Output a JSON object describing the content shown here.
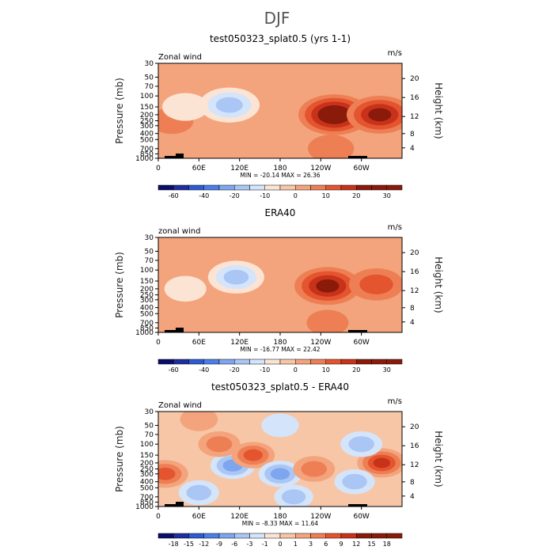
{
  "main_title": "DJF",
  "colors": {
    "neg": [
      "#0a0e6b",
      "#1e2fa0",
      "#2e5bd4",
      "#4a7fe6",
      "#7ea6ef",
      "#a9c6f5",
      "#d4e4fa"
    ],
    "pos": [
      "#fbe4d4",
      "#f7c6a6",
      "#f3a47c",
      "#ee7f55",
      "#e4542e",
      "#c8321a",
      "#8a1a0a"
    ],
    "frame": "#000000"
  },
  "chart_data": [
    {
      "type": "heatmap",
      "title": "test050323_splat0.5 (yrs 1-1)",
      "variable_label": "Zonal wind",
      "units_label": "m/s",
      "ylabel": "Pressure (mb)",
      "y2label": "Height (km)",
      "x_ticks": [
        "0",
        "60E",
        "120E",
        "180",
        "120W",
        "60W"
      ],
      "y_ticks": [
        "30",
        "50",
        "70",
        "100",
        "150",
        "200",
        "250",
        "300",
        "400",
        "500",
        "700",
        "850",
        "1000"
      ],
      "y2_ticks": [
        "20",
        "16",
        "12",
        "8",
        "4"
      ],
      "min_max_text": "MIN = -20.14   MAX = 26.36",
      "colorbar_labels": [
        "-60",
        "-40",
        "-20",
        "-10",
        "0",
        "10",
        "20",
        "30"
      ],
      "colorbar_levels": [
        -70,
        -60,
        -50,
        -40,
        -30,
        -20,
        -15,
        -10,
        -5,
        0,
        5,
        10,
        15,
        20,
        25,
        30
      ],
      "min": -20.14,
      "max": 26.36,
      "features": [
        {
          "lon": 105,
          "p": 140,
          "value": -18
        },
        {
          "lon": 260,
          "p": 200,
          "value": 26
        },
        {
          "lon": 327,
          "p": 200,
          "value": 22
        },
        {
          "lon": 255,
          "p": 700,
          "value": 8
        },
        {
          "lon": 150,
          "p": 850,
          "value": 4
        },
        {
          "lon": 20,
          "p": 250,
          "value": 6
        },
        {
          "lon": 40,
          "p": 150,
          "value": -8
        }
      ]
    },
    {
      "type": "heatmap",
      "title": "ERA40",
      "variable_label": "zonal wind",
      "units_label": "m/s",
      "ylabel": "Pressure (mb)",
      "y2label": "Height (km)",
      "x_ticks": [
        "0",
        "60E",
        "120E",
        "180",
        "120W",
        "60W"
      ],
      "y_ticks": [
        "30",
        "50",
        "70",
        "100",
        "150",
        "200",
        "250",
        "300",
        "400",
        "500",
        "700",
        "850",
        "1000"
      ],
      "y2_ticks": [
        "20",
        "16",
        "12",
        "8",
        "4"
      ],
      "min_max_text": "MIN = -16.77   MAX = 22.42",
      "colorbar_labels": [
        "-60",
        "-40",
        "-20",
        "-10",
        "0",
        "10",
        "20",
        "30"
      ],
      "colorbar_levels": [
        -70,
        -60,
        -50,
        -40,
        -30,
        -20,
        -15,
        -10,
        -5,
        0,
        5,
        10,
        15,
        20,
        25,
        30
      ],
      "min": -16.77,
      "max": 22.42,
      "features": [
        {
          "lon": 115,
          "p": 130,
          "value": -15
        },
        {
          "lon": 250,
          "p": 180,
          "value": 22
        },
        {
          "lon": 322,
          "p": 170,
          "value": 14
        },
        {
          "lon": 40,
          "p": 200,
          "value": -5
        },
        {
          "lon": 250,
          "p": 700,
          "value": 5
        },
        {
          "lon": 300,
          "p": 550,
          "value": -4
        }
      ]
    },
    {
      "type": "heatmap",
      "title": "test050323_splat0.5 - ERA40",
      "variable_label": "Zonal wind",
      "units_label": "m/s",
      "ylabel": "Pressure (mb)",
      "y2label": "Height (km)",
      "x_ticks": [
        "0",
        "60E",
        "120E",
        "180",
        "120W",
        "60W"
      ],
      "y_ticks": [
        "30",
        "50",
        "70",
        "100",
        "150",
        "200",
        "250",
        "300",
        "400",
        "500",
        "700",
        "850",
        "1000"
      ],
      "y2_ticks": [
        "20",
        "16",
        "12",
        "8",
        "4"
      ],
      "min_max_text": "MIN = -8.33   MAX = 11.64",
      "colorbar_labels": [
        "-18",
        "-15",
        "-12",
        "-9",
        "-6",
        "-3",
        "-1",
        "0",
        "1",
        "3",
        "6",
        "9",
        "12",
        "15",
        "18"
      ],
      "colorbar_levels": [
        -21,
        -18,
        -15,
        -12,
        -9,
        -6,
        -3,
        -1,
        0,
        1,
        3,
        6,
        9,
        12,
        15,
        18
      ],
      "min": -8.33,
      "max": 11.64,
      "features": [
        {
          "lon": 10,
          "p": 300,
          "value": 8
        },
        {
          "lon": 110,
          "p": 220,
          "value": -7
        },
        {
          "lon": 90,
          "p": 100,
          "value": 5
        },
        {
          "lon": 140,
          "p": 150,
          "value": 6
        },
        {
          "lon": 180,
          "p": 300,
          "value": -6
        },
        {
          "lon": 230,
          "p": 250,
          "value": 5
        },
        {
          "lon": 330,
          "p": 200,
          "value": 10
        },
        {
          "lon": 300,
          "p": 100,
          "value": -5
        },
        {
          "lon": 290,
          "p": 400,
          "value": -4
        },
        {
          "lon": 60,
          "p": 600,
          "value": -4
        },
        {
          "lon": 200,
          "p": 700,
          "value": -3
        },
        {
          "lon": 180,
          "p": 50,
          "value": -2
        },
        {
          "lon": 60,
          "p": 40,
          "value": 2
        }
      ]
    }
  ]
}
